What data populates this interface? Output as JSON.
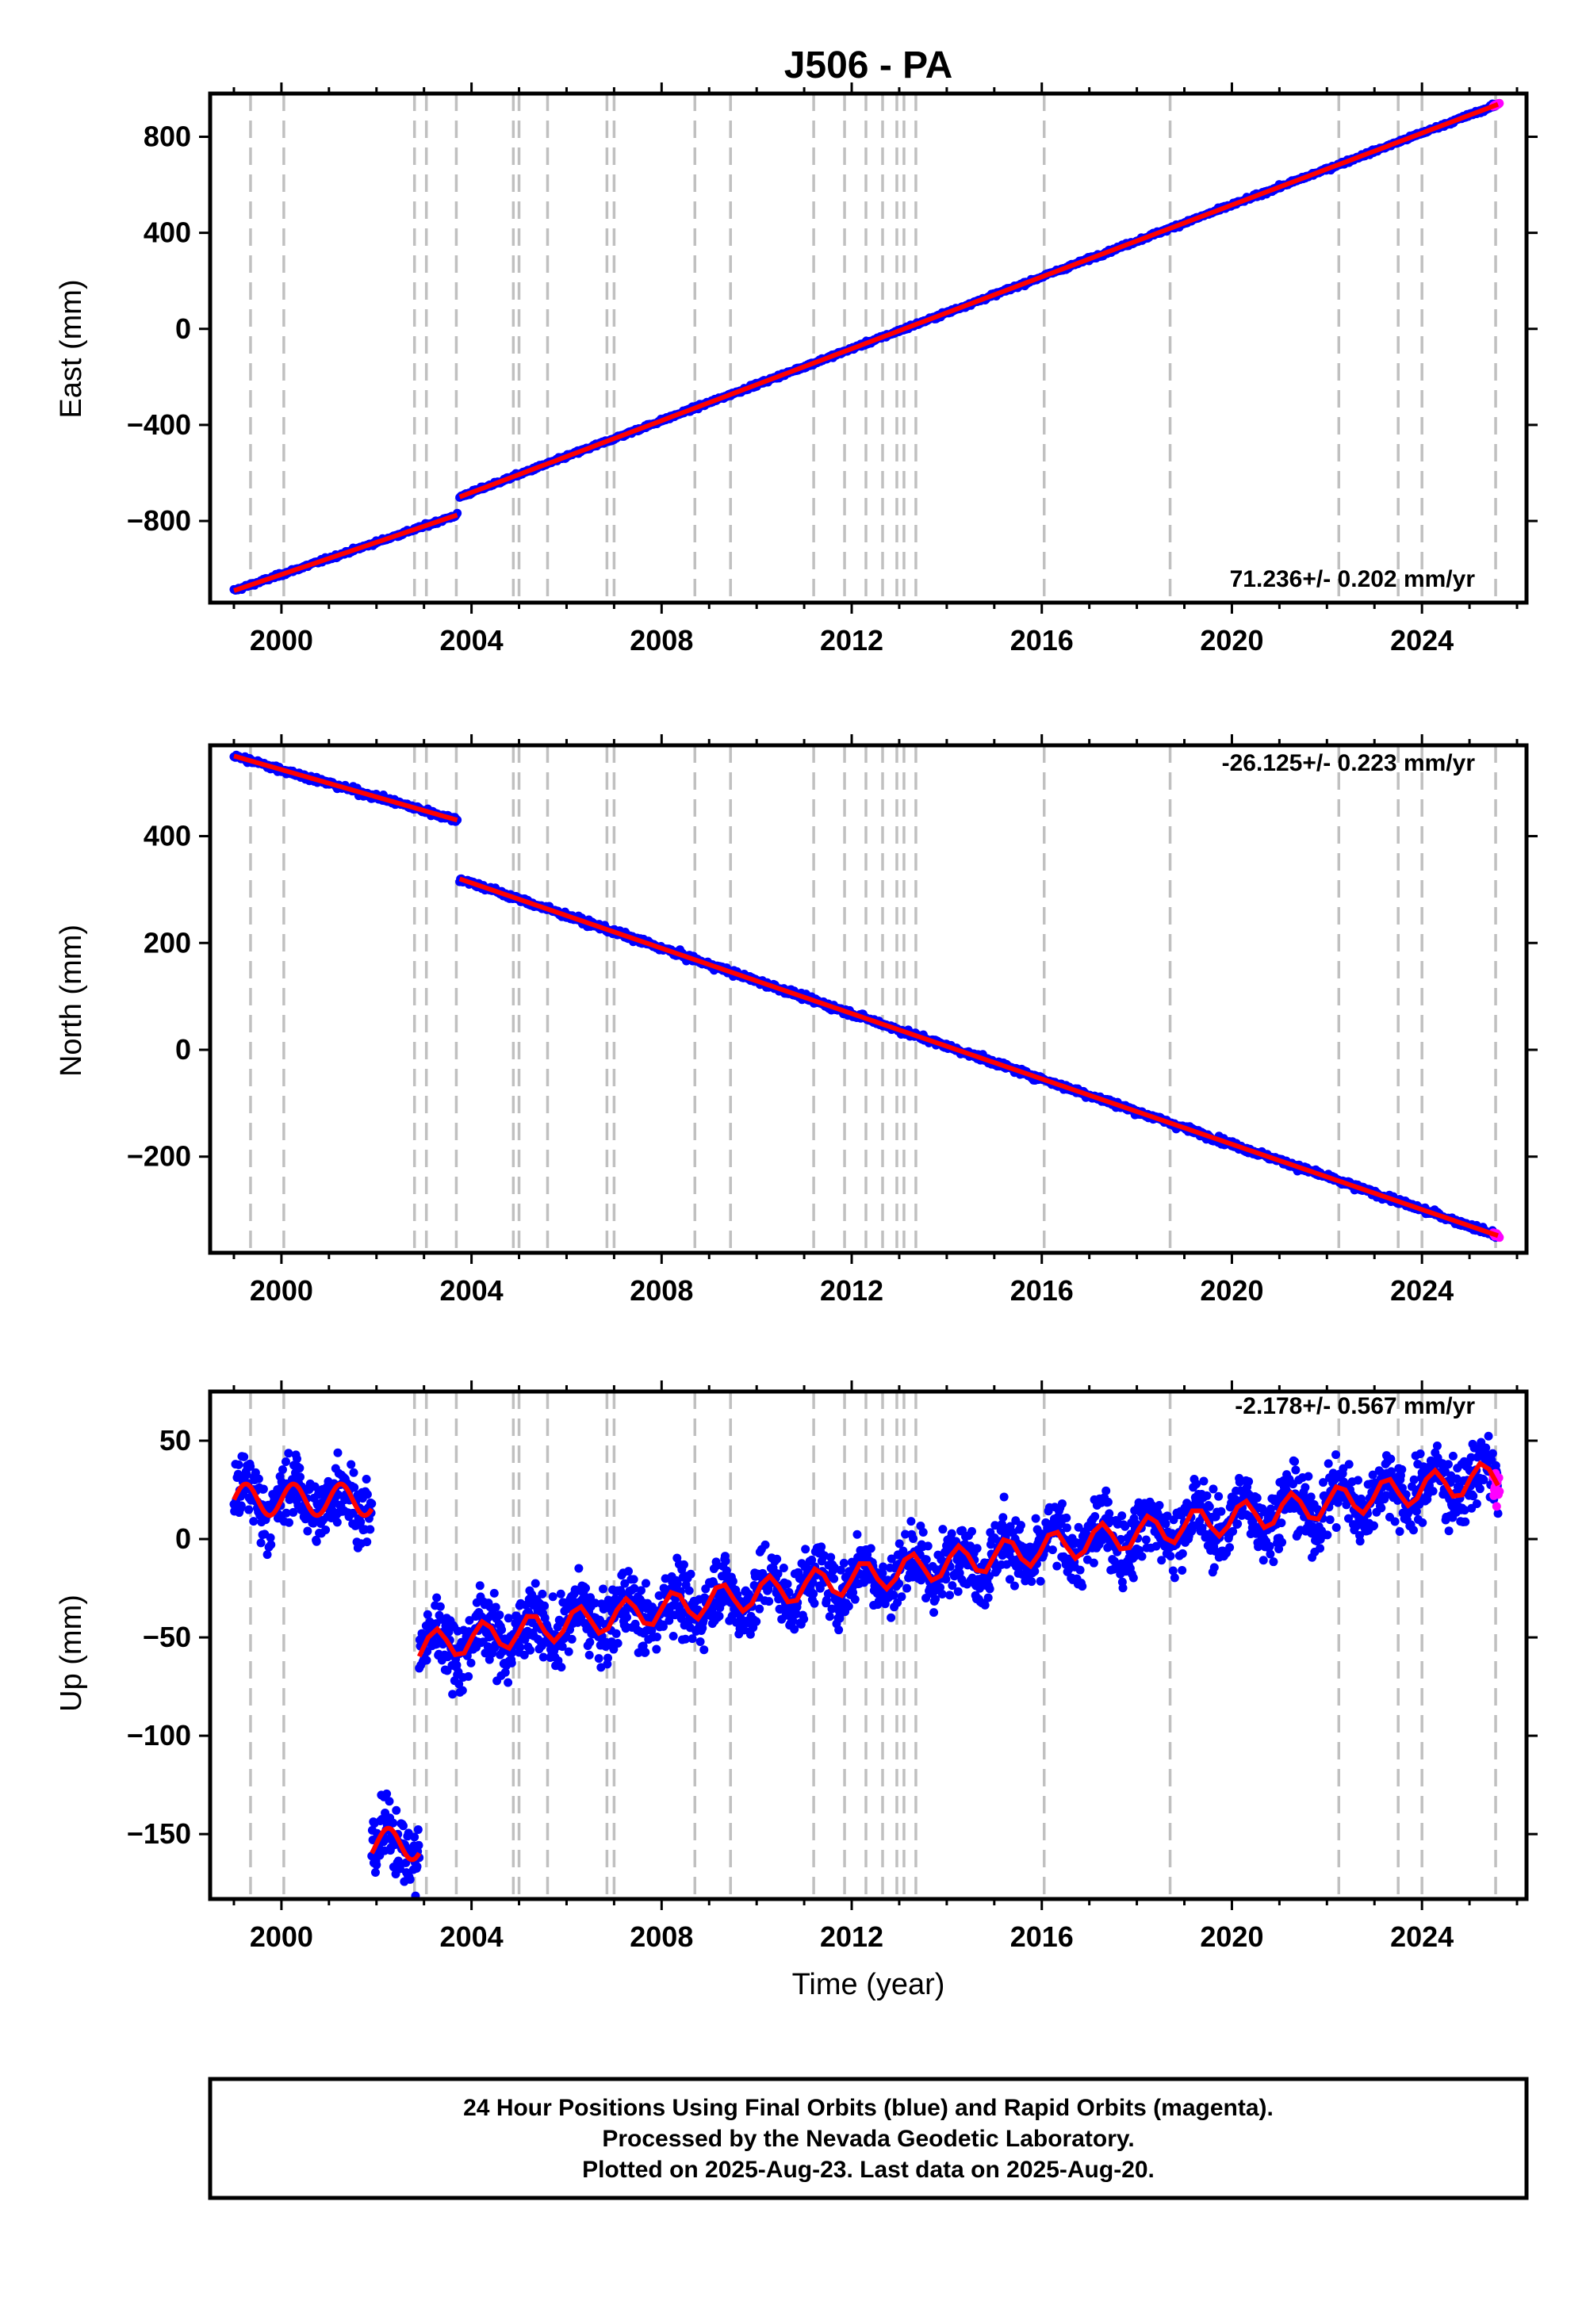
{
  "title": "J506 - PA",
  "colors": {
    "final_orbits": "#0000ff",
    "rapid_orbits": "#ff00ff",
    "model": "#ff0000",
    "event_lines": "#c0c0c0"
  },
  "chart_data": [
    {
      "type": "scatter",
      "component": "East",
      "ylabel": "East (mm)",
      "xlabel": "",
      "xlim": [
        1998.5,
        2026.2
      ],
      "ylim": [
        -1140,
        980
      ],
      "yticks": [
        -800,
        -400,
        0,
        400,
        800
      ],
      "xticks": [
        2000,
        2004,
        2008,
        2012,
        2016,
        2020,
        2024
      ],
      "rate_label": "71.236+/- 0.202 mm/yr",
      "rate_position": "bottom-right",
      "series": [
        {
          "color": "blue",
          "x": [
            1999.0,
            2003.7
          ],
          "y": [
            -1090,
            -775
          ]
        },
        {
          "color": "blue",
          "x": [
            2003.75,
            2025.6
          ],
          "y": [
            -700,
            935
          ]
        },
        {
          "color": "magenta",
          "x": [
            2025.5,
            2025.63
          ],
          "y": [
            928,
            940
          ]
        }
      ]
    },
    {
      "type": "scatter",
      "component": "North",
      "ylabel": "North (mm)",
      "xlabel": "",
      "xlim": [
        1998.5,
        2026.2
      ],
      "ylim": [
        -380,
        570
      ],
      "yticks": [
        -200,
        0,
        200,
        400
      ],
      "xticks": [
        2000,
        2004,
        2008,
        2012,
        2016,
        2020,
        2024
      ],
      "rate_label": "-26.125+/- 0.223 mm/yr",
      "rate_position": "top-right",
      "series": [
        {
          "color": "blue",
          "x": [
            1999.0,
            2003.7
          ],
          "y": [
            550,
            430
          ]
        },
        {
          "color": "blue",
          "x": [
            2003.75,
            2025.6
          ],
          "y": [
            320,
            -348
          ]
        },
        {
          "color": "magenta",
          "x": [
            2025.5,
            2025.63
          ],
          "y": [
            -345,
            -350
          ]
        }
      ]
    },
    {
      "type": "scatter",
      "component": "Up",
      "ylabel": "Up (mm)",
      "xlabel": "Time (year)",
      "xlim": [
        1998.5,
        2026.2
      ],
      "ylim": [
        -183,
        75
      ],
      "yticks": [
        -150,
        -100,
        -50,
        0,
        50
      ],
      "xticks": [
        2000,
        2004,
        2008,
        2012,
        2016,
        2020,
        2024
      ],
      "rate_label": "-2.178+/- 0.567 mm/yr",
      "rate_position": "top-right",
      "series": [
        {
          "color": "blue",
          "x": [
            1999.0,
            2001.9
          ],
          "y": [
            20,
            20
          ]
        },
        {
          "color": "blue",
          "x": [
            2001.9,
            2002.9
          ],
          "y": [
            -155,
            -155
          ]
        },
        {
          "color": "blue",
          "x": [
            2002.9,
            2025.6
          ],
          "y": [
            -55,
            32
          ]
        },
        {
          "color": "magenta",
          "x": [
            2025.5,
            2025.63
          ],
          "y": [
            25,
            30
          ]
        }
      ]
    }
  ],
  "event_lines_years": [
    1999.35,
    2000.05,
    2002.8,
    2003.05,
    2003.68,
    2004.88,
    2005.0,
    2005.6,
    2006.85,
    2007.0,
    2008.7,
    2009.45,
    2011.2,
    2011.85,
    2012.3,
    2012.65,
    2012.95,
    2013.1,
    2013.35,
    2016.05,
    2018.7,
    2022.25,
    2023.5,
    2024.0,
    2025.55
  ],
  "footer": {
    "line1": "24 Hour Positions Using Final Orbits (blue) and Rapid Orbits (magenta).",
    "line2": "Processed by the Nevada Geodetic Laboratory.",
    "line3": "Plotted on 2025-Aug-23. Last data on 2025-Aug-20."
  }
}
